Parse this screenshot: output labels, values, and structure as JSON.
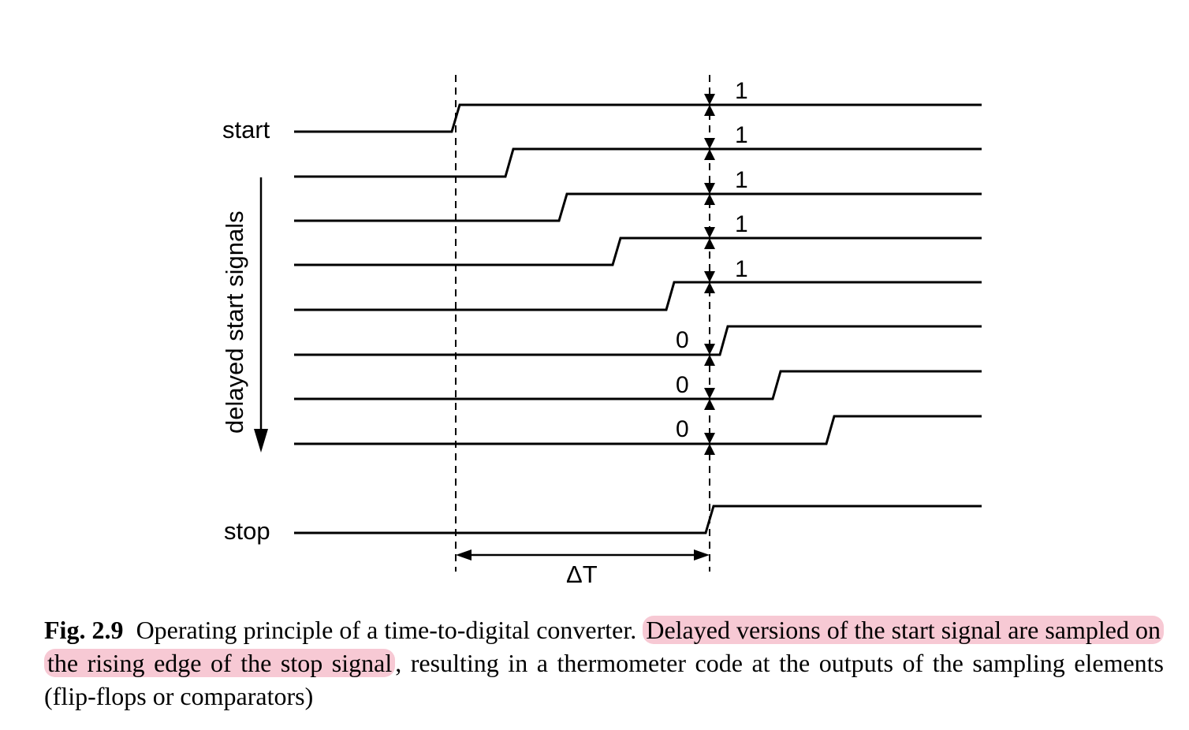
{
  "figure": {
    "start_label": "start",
    "stop_label": "stop",
    "delayed_label": "delayed start signals",
    "delta_label": "ΔT",
    "bits": [
      "1",
      "1",
      "1",
      "1",
      "1",
      "0",
      "0",
      "0"
    ]
  },
  "caption": {
    "fig_num": "Fig. 2.9",
    "text_plain_1": "Operating principle of a time-to-digital converter.",
    "text_highlight": "Delayed versions of the start signal are sampled on the rising edge of the stop signal",
    "text_plain_2": ", resulting in a thermometer code at the outputs of the sampling elements (flip-flops or comparators)",
    "highlight_color": "#f7c9d4"
  }
}
